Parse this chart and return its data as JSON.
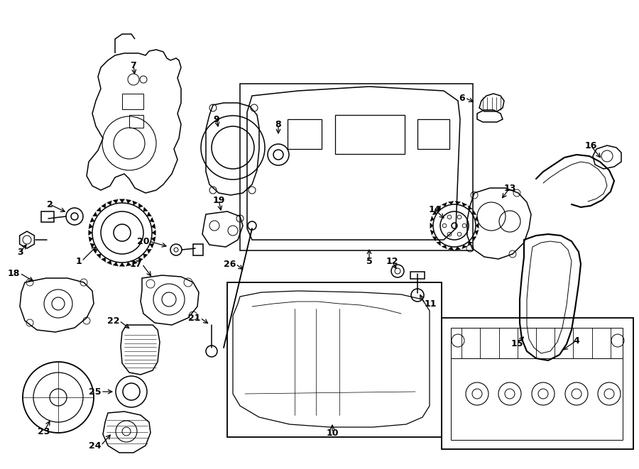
{
  "background_color": "#ffffff",
  "line_color": "#000000",
  "figure_width": 9.0,
  "figure_height": 6.61,
  "dpi": 100,
  "xlim": [
    0,
    9.0
  ],
  "ylim": [
    6.61,
    0
  ]
}
